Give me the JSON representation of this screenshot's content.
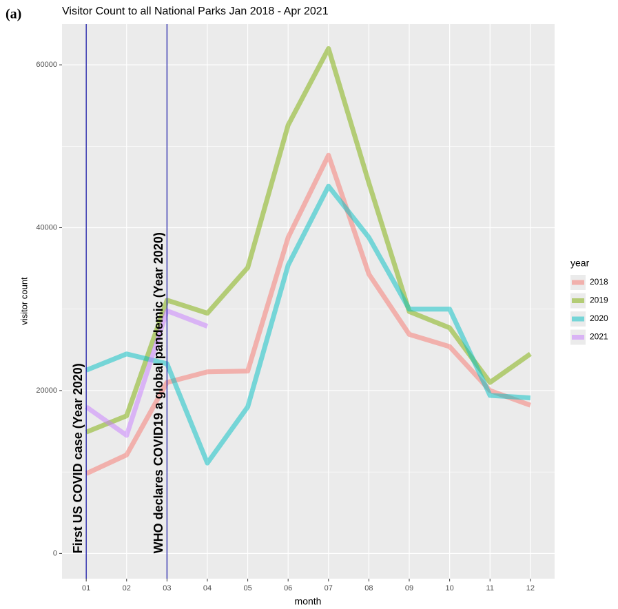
{
  "panel_label": "(a)",
  "chart_data": {
    "type": "line",
    "title": "Visitor Count to all National Parks Jan 2018 - Apr 2021",
    "x_label": "month",
    "y_label": "visitor count",
    "legend_title": "year",
    "categories": [
      "01",
      "02",
      "03",
      "04",
      "05",
      "06",
      "07",
      "08",
      "09",
      "10",
      "11",
      "12"
    ],
    "series": [
      {
        "name": "2018",
        "color": "#F8766D",
        "values": [
          9800,
          12100,
          21000,
          22300,
          22400,
          38800,
          48900,
          34300,
          26900,
          25400,
          20000,
          18200
        ]
      },
      {
        "name": "2019",
        "color": "#7CAE00",
        "values": [
          14900,
          16900,
          31100,
          29500,
          35100,
          52600,
          62000,
          45500,
          29700,
          27700,
          21000,
          24500
        ]
      },
      {
        "name": "2020",
        "color": "#00BFC4",
        "values": [
          22500,
          24500,
          23300,
          11100,
          18000,
          35400,
          45100,
          38800,
          30000,
          30000,
          19400,
          19100
        ]
      },
      {
        "name": "2021",
        "color": "#C77CFF",
        "values": [
          18000,
          14500,
          29800,
          27900,
          null,
          null,
          null,
          null,
          null,
          null,
          null,
          null
        ]
      }
    ],
    "annotations": [
      {
        "x": "01",
        "label": "First US COVID case (Year 2020)"
      },
      {
        "x": "03",
        "label": "WHO declares COVID19 a global pandemic (Year 2020)"
      }
    ],
    "annotation_color": "#1a1aa6",
    "ylim": [
      -3100,
      65000
    ],
    "yticks": [
      0,
      20000,
      40000,
      60000
    ],
    "grid": true
  }
}
